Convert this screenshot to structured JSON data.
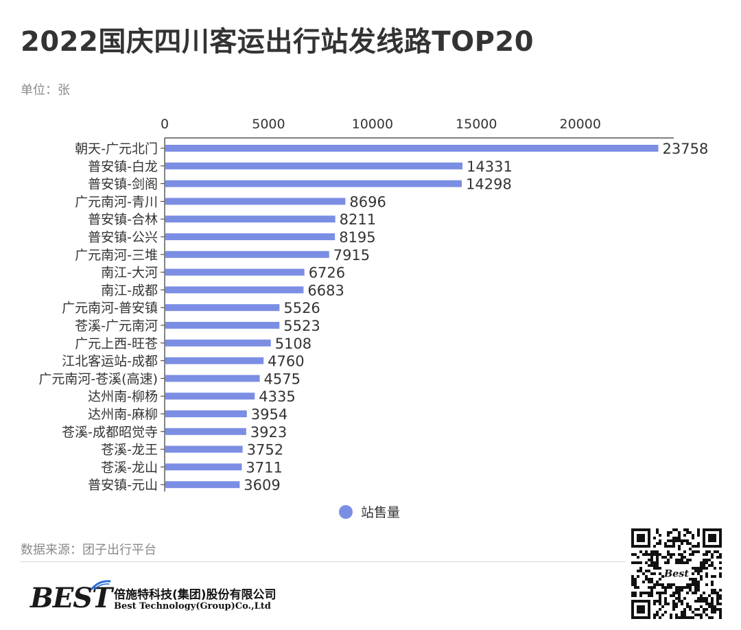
{
  "title": "2022国庆四川客运出行站发线路TOP20",
  "unit_label": "单位：张",
  "source_label": "数据来源：团子出行平台",
  "company": {
    "logo_text": "BEST",
    "name_cn": "倍施特科技(集团)股份有限公司",
    "name_en": "Best Technology(Group)Co.,Ltd",
    "qr_badge": "Best"
  },
  "colors": {
    "bar": "#7b8ee3",
    "title": "#333333",
    "muted": "#8a8a8a",
    "axis": "#333333",
    "swoosh": "#2a6fd6"
  },
  "chart_data": {
    "type": "bar",
    "orientation": "horizontal",
    "xlim": [
      0,
      24500
    ],
    "x_ticks": [
      0,
      5000,
      10000,
      15000,
      20000
    ],
    "x_axis_position": "top",
    "grid": false,
    "legend_position": "bottom-center",
    "categories": [
      "朝天-广元北门",
      "普安镇-白龙",
      "普安镇-剑阁",
      "广元南河-青川",
      "普安镇-合林",
      "普安镇-公兴",
      "广元南河-三堆",
      "南江-大河",
      "南江-成都",
      "广元南河-普安镇",
      "苍溪-广元南河",
      "广元上西-旺苍",
      "江北客运站-成都",
      "广元南河-苍溪(高速)",
      "达州南-柳杨",
      "达州南-麻柳",
      "苍溪-成都昭觉寺",
      "苍溪-龙王",
      "苍溪-龙山",
      "普安镇-元山"
    ],
    "series": [
      {
        "name": "站售量",
        "values": [
          23758,
          14331,
          14298,
          8696,
          8211,
          8195,
          7915,
          6726,
          6683,
          5526,
          5523,
          5108,
          4760,
          4575,
          4335,
          3954,
          3923,
          3752,
          3711,
          3609
        ]
      }
    ]
  }
}
